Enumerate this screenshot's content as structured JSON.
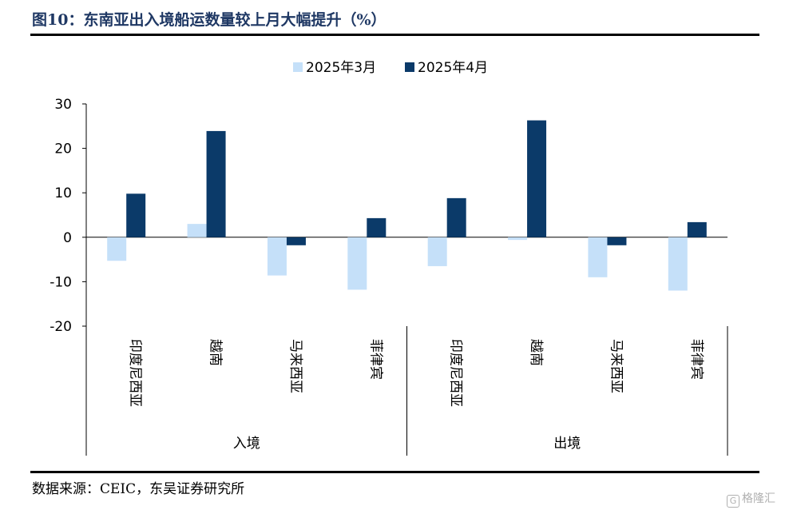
{
  "title": "图10：东南亚出入境船运数量较上月大幅提升（%）",
  "source": "数据来源：CEIC，东吴证券研究所",
  "watermark": "格隆汇",
  "colors": {
    "series1": "#c5e0f9",
    "series2": "#0b3a69",
    "title": "#1f3864"
  },
  "chart_data": {
    "type": "bar",
    "title": "图10：东南亚出入境船运数量较上月大幅提升（%）",
    "groups": [
      {
        "label": "入境",
        "categories": [
          "印度尼西亚",
          "越南",
          "马来西亚",
          "菲律宾"
        ]
      },
      {
        "label": "出境",
        "categories": [
          "印度尼西亚",
          "越南",
          "马来西亚",
          "菲律宾"
        ]
      }
    ],
    "categories": [
      "印度尼西亚",
      "越南",
      "马来西亚",
      "菲律宾",
      "印度尼西亚",
      "越南",
      "马来西亚",
      "菲律宾"
    ],
    "series": [
      {
        "name": "2025年3月",
        "values": [
          -5.3,
          3.0,
          -8.6,
          -11.8,
          -6.5,
          -0.6,
          -9.0,
          -12.0
        ]
      },
      {
        "name": "2025年4月",
        "values": [
          9.8,
          23.9,
          -1.8,
          4.3,
          8.8,
          26.3,
          -1.8,
          3.4
        ]
      }
    ],
    "ylim": [
      -20,
      30
    ],
    "yticks": [
      30,
      20,
      10,
      0,
      -10,
      -20
    ],
    "xlabel": "",
    "ylabel": "",
    "legend_position": "top-center",
    "grid": false
  }
}
